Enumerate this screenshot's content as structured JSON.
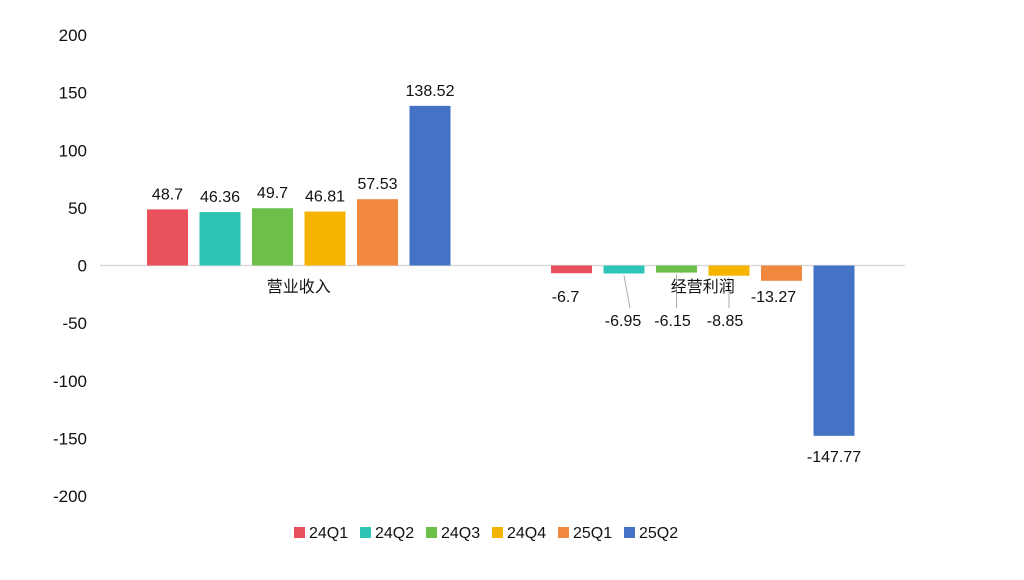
{
  "chart_data": {
    "type": "bar",
    "categories": [
      "营业收入",
      "经营利润"
    ],
    "series": [
      {
        "name": "24Q1",
        "color": "#e8505b",
        "values": [
          48.7,
          -6.7
        ]
      },
      {
        "name": "24Q2",
        "color": "#2ec4b6",
        "values": [
          46.36,
          -6.95
        ]
      },
      {
        "name": "24Q3",
        "color": "#6cc04a",
        "values": [
          49.7,
          -6.15
        ]
      },
      {
        "name": "24Q4",
        "color": "#f4b400",
        "values": [
          46.81,
          -8.85
        ]
      },
      {
        "name": "25Q1",
        "color": "#f0883e",
        "values": [
          57.53,
          -13.27
        ]
      },
      {
        "name": "25Q2",
        "color": "#4472c4",
        "values": [
          138.52,
          -147.77
        ]
      }
    ],
    "data_labels": [
      [
        "48.7",
        "46.36",
        "49.7",
        "46.81",
        "57.53",
        "138.52"
      ],
      [
        "-6.7",
        "-6.95",
        "-6.15",
        "-8.85",
        "-13.27",
        "-147.77"
      ]
    ],
    "yticks": [
      "200",
      "150",
      "100",
      "50",
      "0",
      "-50",
      "-100",
      "-150",
      "-200"
    ],
    "ylim": [
      -200,
      200
    ],
    "title": "",
    "xlabel": "",
    "ylabel": "",
    "grid": false,
    "legend_position": "bottom"
  }
}
